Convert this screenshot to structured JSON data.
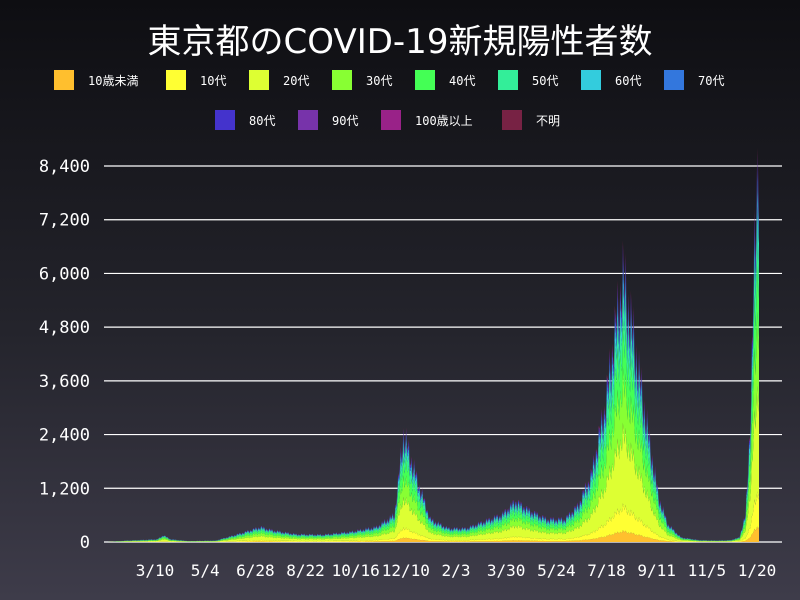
{
  "chart_data": {
    "type": "area",
    "stacked": true,
    "title": "東京都のCOVID-19新規陽性者数",
    "xlabel": "",
    "ylabel": "",
    "ylim": [
      0,
      8400
    ],
    "y_ticks": [
      0,
      1200,
      2400,
      3600,
      4800,
      6000,
      7200,
      8400
    ],
    "y_tick_labels": [
      "0",
      "1,200",
      "2,400",
      "3,600",
      "4,800",
      "6,000",
      "7,200",
      "8,400"
    ],
    "x_tick_labels": [
      "3/10",
      "5/4",
      "6/28",
      "8/22",
      "10/16",
      "12/10",
      "2/3",
      "3/30",
      "5/24",
      "7/18",
      "9/11",
      "11/5",
      "1/20"
    ],
    "grid": "horizontal",
    "legend_placement": "top",
    "series": [
      {
        "name": "10歳未満",
        "color": "#ffbf2e"
      },
      {
        "name": "10代",
        "color": "#ffff33"
      },
      {
        "name": "20代",
        "color": "#ddff33"
      },
      {
        "name": "30代",
        "color": "#88ff33"
      },
      {
        "name": "40代",
        "color": "#44ff55"
      },
      {
        "name": "50代",
        "color": "#33ee99"
      },
      {
        "name": "60代",
        "color": "#33ccdd"
      },
      {
        "name": "70代",
        "color": "#3377dd"
      },
      {
        "name": "80代",
        "color": "#4433cc"
      },
      {
        "name": "90代",
        "color": "#7733aa"
      },
      {
        "name": "100歳以上",
        "color": "#992288"
      },
      {
        "name": "不明",
        "color": "#772244"
      }
    ],
    "totals": [
      [
        0,
        0
      ],
      [
        20,
        30
      ],
      [
        55,
        60
      ],
      [
        62,
        150
      ],
      [
        70,
        60
      ],
      [
        90,
        20
      ],
      [
        120,
        30
      ],
      [
        150,
        200
      ],
      [
        170,
        330
      ],
      [
        185,
        250
      ],
      [
        210,
        170
      ],
      [
        240,
        160
      ],
      [
        270,
        220
      ],
      [
        300,
        330
      ],
      [
        320,
        600
      ],
      [
        330,
        2400
      ],
      [
        345,
        1400
      ],
      [
        360,
        500
      ],
      [
        380,
        300
      ],
      [
        400,
        300
      ],
      [
        420,
        450
      ],
      [
        440,
        600
      ],
      [
        455,
        900
      ],
      [
        470,
        700
      ],
      [
        490,
        500
      ],
      [
        510,
        500
      ],
      [
        525,
        800
      ],
      [
        540,
        1500
      ],
      [
        555,
        3000
      ],
      [
        565,
        4500
      ],
      [
        575,
        5900
      ],
      [
        585,
        4800
      ],
      [
        595,
        3500
      ],
      [
        605,
        2200
      ],
      [
        615,
        1000
      ],
      [
        625,
        400
      ],
      [
        640,
        100
      ],
      [
        660,
        40
      ],
      [
        680,
        30
      ],
      [
        695,
        40
      ],
      [
        705,
        100
      ],
      [
        712,
        600
      ],
      [
        718,
        3000
      ],
      [
        722,
        6500
      ],
      [
        725,
        8300
      ],
      [
        727,
        8500
      ]
    ]
  }
}
